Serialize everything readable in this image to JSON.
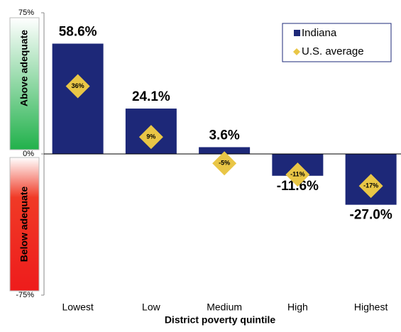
{
  "chart_data": {
    "type": "bar",
    "x_label": "District poverty quintile",
    "zones": {
      "above": "Above adequate",
      "below": "Below adequate"
    },
    "categories": [
      "Lowest",
      "Low",
      "Medium",
      "High",
      "Highest"
    ],
    "series": [
      {
        "name": "Indiana",
        "color": "#1d2878",
        "values": [
          58.6,
          24.1,
          3.6,
          -11.6,
          -27.0
        ],
        "value_labels": [
          "58.6%",
          "24.1%",
          "3.6%",
          "-11.6%",
          "-27.0%"
        ]
      },
      {
        "name": "U.S. average",
        "color": "#e9c646",
        "marker": "diamond",
        "values": [
          36,
          9,
          -5,
          -11,
          -17
        ],
        "value_labels": [
          "36%",
          "9%",
          "-5%",
          "-11%",
          "-17%"
        ]
      }
    ],
    "ylim": [
      -75,
      75
    ],
    "yticks": [
      {
        "value": 75,
        "label": "75%"
      },
      {
        "value": 0,
        "label": "0%"
      },
      {
        "value": -75,
        "label": "-75%"
      }
    ],
    "legend": "top-right"
  }
}
